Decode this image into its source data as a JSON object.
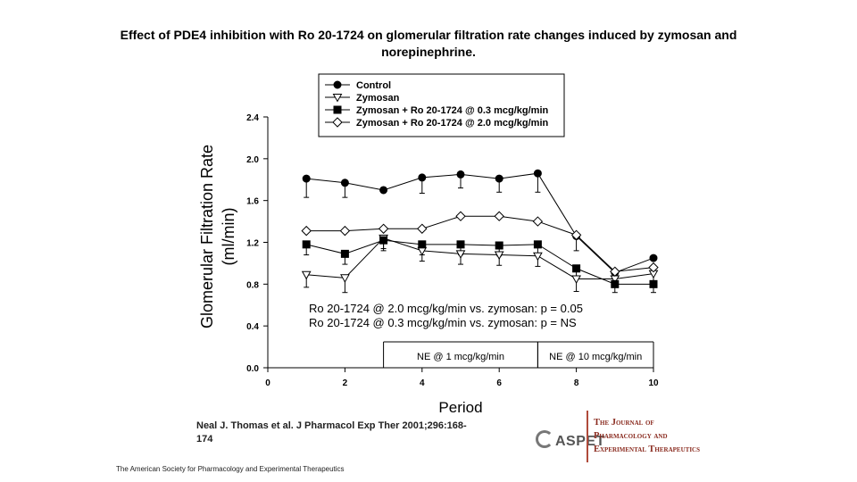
{
  "title": "Effect of PDE4 inhibition with Ro 20-1724 on glomerular filtration rate changes induced by zymosan and norepinephrine.",
  "citation": "Neal J. Thomas et al. J Pharmacol Exp Ther 2001;296:168-174",
  "footer": "The American Society for Pharmacology and Experimental Therapeutics",
  "aspet_logo": "ASPET",
  "journal_lines": [
    "The Journal of",
    "Pharmacology and",
    "Experimental Therapeutics"
  ],
  "chart_data": {
    "type": "line",
    "xlabel": "Period",
    "ylabel_lines": [
      "Glomerular Filtration Rate",
      "(ml/min)"
    ],
    "xlim": [
      0,
      10
    ],
    "ylim": [
      0,
      2.4
    ],
    "xticks": [
      0,
      2,
      4,
      6,
      8,
      10
    ],
    "yticks": [
      0.0,
      0.4,
      0.8,
      1.2,
      1.6,
      2.0,
      2.4
    ],
    "ytick_labels": [
      "0.0",
      "0.4",
      "0.8",
      "1.2",
      "1.6",
      "2.0",
      "2.4"
    ],
    "legend_position": "top",
    "series": [
      {
        "name": "Control",
        "marker": "circle-filled",
        "x": [
          1,
          2,
          3,
          4,
          5,
          6,
          7,
          8,
          9,
          10
        ],
        "y": [
          1.81,
          1.77,
          1.7,
          1.82,
          1.85,
          1.81,
          1.86,
          1.26,
          0.91,
          1.05
        ],
        "err": [
          0.18,
          0.14,
          0.0,
          0.15,
          0.13,
          0.13,
          0.18,
          0.14,
          0.1,
          0.0
        ]
      },
      {
        "name": "Zymosan",
        "marker": "triangle-down-open",
        "x": [
          1,
          2,
          3,
          4,
          5,
          6,
          7,
          8,
          9,
          10
        ],
        "y": [
          0.89,
          0.86,
          1.24,
          1.12,
          1.09,
          1.08,
          1.07,
          0.85,
          0.85,
          0.9
        ],
        "err": [
          0.12,
          0.14,
          0.1,
          0.1,
          0.1,
          0.1,
          0.1,
          0.12,
          0.08,
          0.12
        ]
      },
      {
        "name": "Zymosan + Ro 20-1724 @ 0.3 mcg/kg/min",
        "marker": "square-filled",
        "x": [
          1,
          2,
          3,
          4,
          5,
          6,
          7,
          8,
          9,
          10
        ],
        "y": [
          1.18,
          1.09,
          1.22,
          1.18,
          1.18,
          1.17,
          1.18,
          0.95,
          0.8,
          0.8
        ],
        "err": [
          0.1,
          0.1,
          0.1,
          0.1,
          0.1,
          0.1,
          0.1,
          0.1,
          0.08,
          0.08
        ]
      },
      {
        "name": "Zymosan + Ro 20-1724 @ 2.0 mcg/kg/min",
        "marker": "diamond-open",
        "x": [
          1,
          2,
          3,
          4,
          5,
          6,
          7,
          8,
          9,
          10
        ],
        "y": [
          1.31,
          1.31,
          1.33,
          1.33,
          1.45,
          1.45,
          1.4,
          1.27,
          0.92,
          0.96
        ],
        "err": [
          0.0,
          0.0,
          0.0,
          0.0,
          0.0,
          0.0,
          0.0,
          0.0,
          0.0,
          0.0
        ]
      }
    ],
    "annotations": [
      "Ro 20-1724 @ 2.0 mcg/kg/min vs. zymosan:  p = 0.05",
      "Ro 20-1724 @ 0.3 mcg/kg/min vs. zymosan:  p = NS"
    ],
    "periods": [
      {
        "label": "NE @ 1 mcg/kg/min",
        "x_start": 3,
        "x_end": 7
      },
      {
        "label": "NE @ 10 mcg/kg/min",
        "x_start": 7,
        "x_end": 10
      }
    ]
  }
}
